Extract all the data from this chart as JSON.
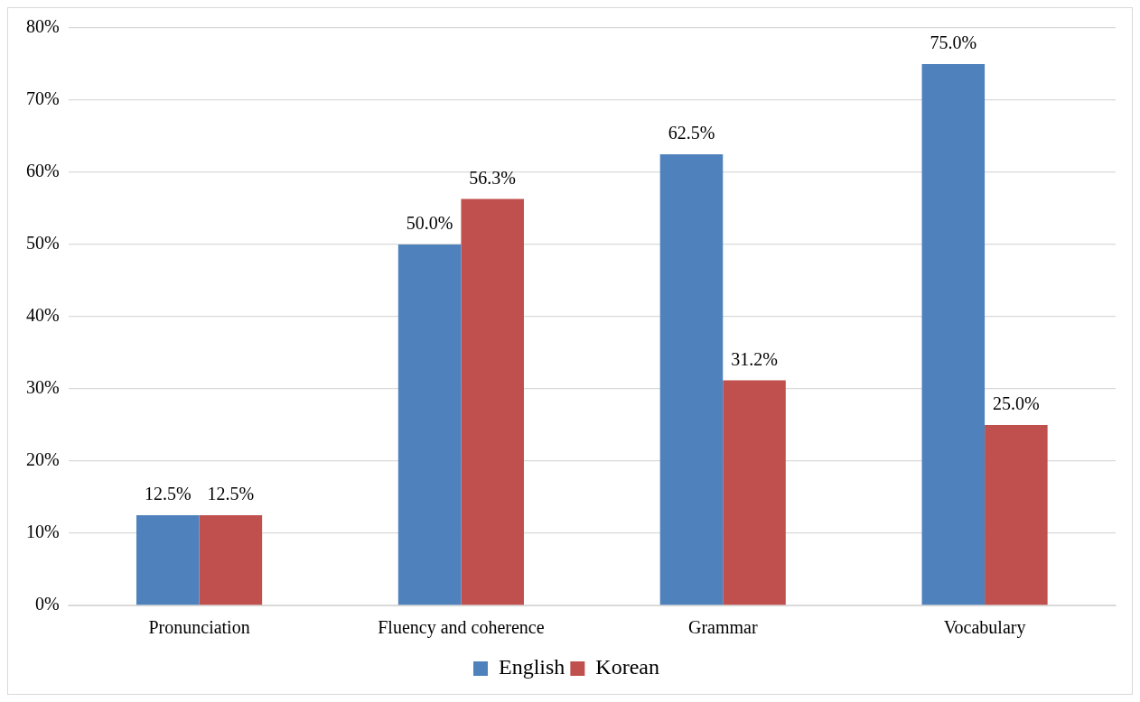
{
  "chart_data": {
    "type": "bar",
    "categories": [
      "Pronunciation",
      "Fluency and coherence",
      "Grammar",
      "Vocabulary"
    ],
    "series": [
      {
        "name": "English",
        "color": "#4f81bd",
        "values": [
          12.5,
          50.0,
          62.5,
          75.0
        ],
        "value_labels": [
          "12.5%",
          "50.0%",
          "62.5%",
          "75.0%"
        ]
      },
      {
        "name": "Korean",
        "color": "#c0504d",
        "values": [
          12.5,
          56.3,
          31.2,
          25.0
        ],
        "value_labels": [
          "12.5%",
          "56.3%",
          "31.2%",
          "25.0%"
        ]
      }
    ],
    "ylim": [
      0,
      80
    ],
    "yticks": [
      {
        "value": 0,
        "label": "0%"
      },
      {
        "value": 10,
        "label": "10%"
      },
      {
        "value": 20,
        "label": "20%"
      },
      {
        "value": 30,
        "label": "30%"
      },
      {
        "value": 40,
        "label": "40%"
      },
      {
        "value": 50,
        "label": "50%"
      },
      {
        "value": 60,
        "label": "60%"
      },
      {
        "value": 70,
        "label": "70%"
      },
      {
        "value": 80,
        "label": "80%"
      }
    ],
    "grid": "y",
    "legend": "bottom"
  }
}
